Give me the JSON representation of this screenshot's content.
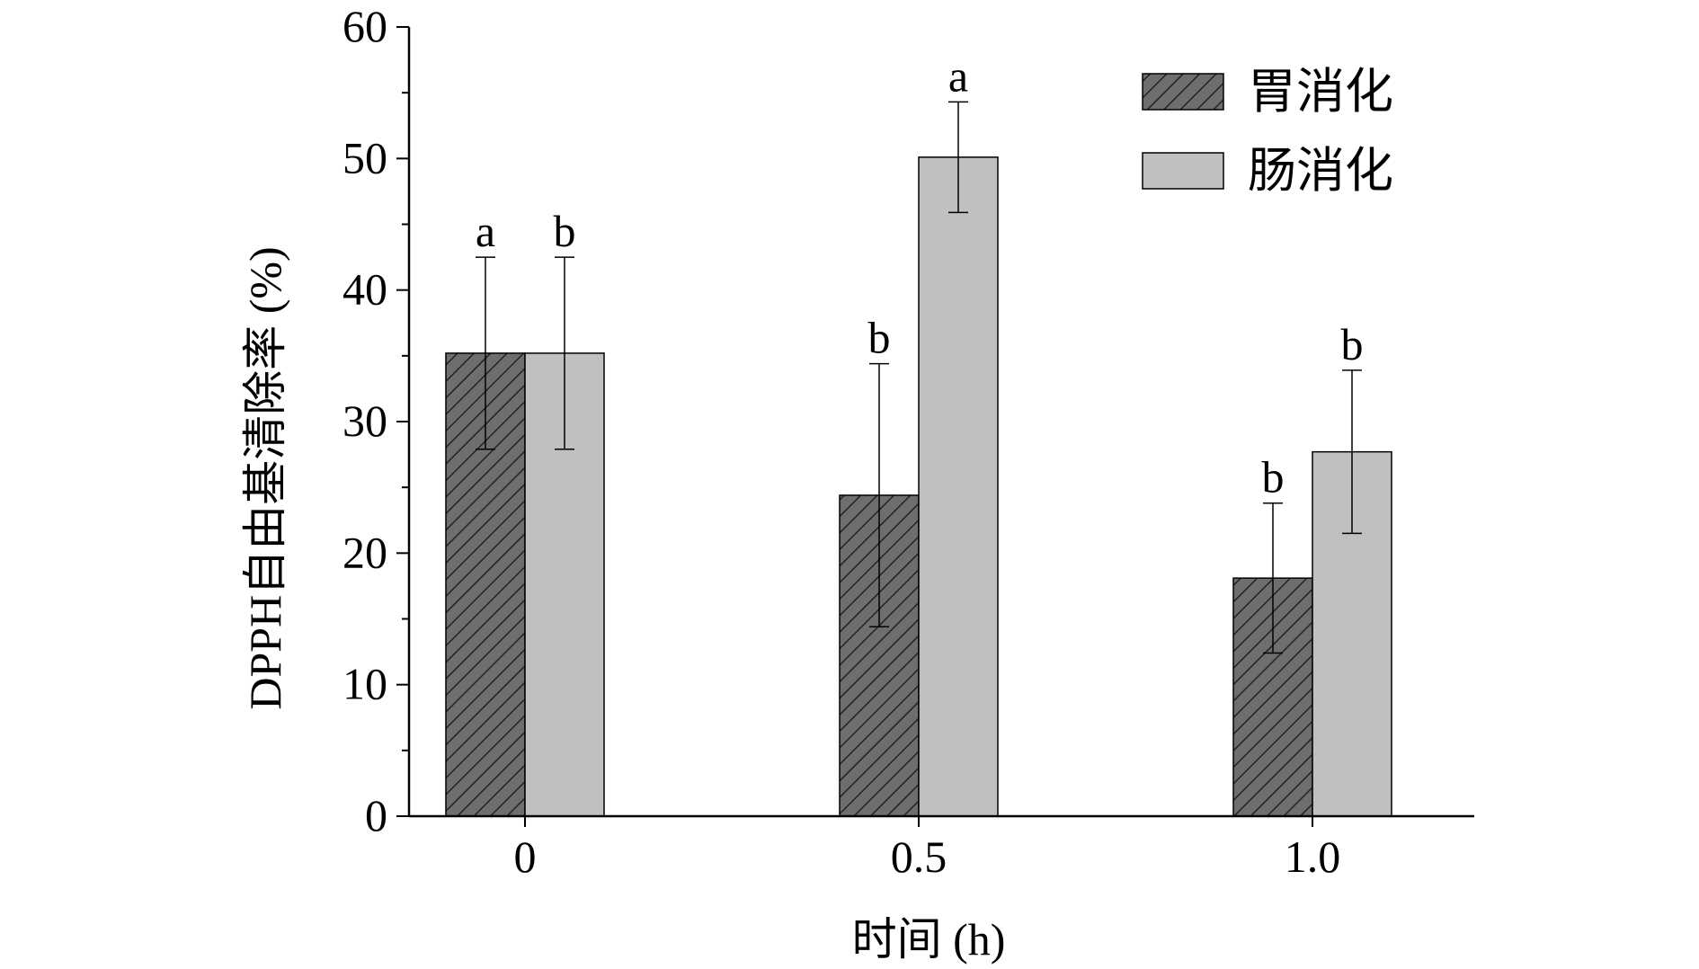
{
  "chart_data": {
    "type": "bar",
    "xlabel": "时间 (h)",
    "ylabel": "DPPH自由基清除率 (%)",
    "ylim": [
      0,
      60
    ],
    "yticks": [
      "0",
      "10",
      "20",
      "30",
      "40",
      "50",
      "60"
    ],
    "categories": [
      "0",
      "0.5",
      "1.0"
    ],
    "legend_position": "top-right",
    "grid": false,
    "series": [
      {
        "name": "胃消化",
        "color": "#6e6e6e",
        "pattern": "diagonal-hatch",
        "values": [
          35.2,
          24.4,
          18.1
        ],
        "errors": [
          7.3,
          10.0,
          5.7
        ],
        "significance": [
          "a",
          "b",
          "b"
        ]
      },
      {
        "name": "肠消化",
        "color": "#c0c0c0",
        "pattern": "solid",
        "values": [
          35.2,
          50.1,
          27.7
        ],
        "errors": [
          7.3,
          4.2,
          6.2
        ],
        "significance": [
          "b",
          "a",
          "b"
        ]
      }
    ]
  }
}
